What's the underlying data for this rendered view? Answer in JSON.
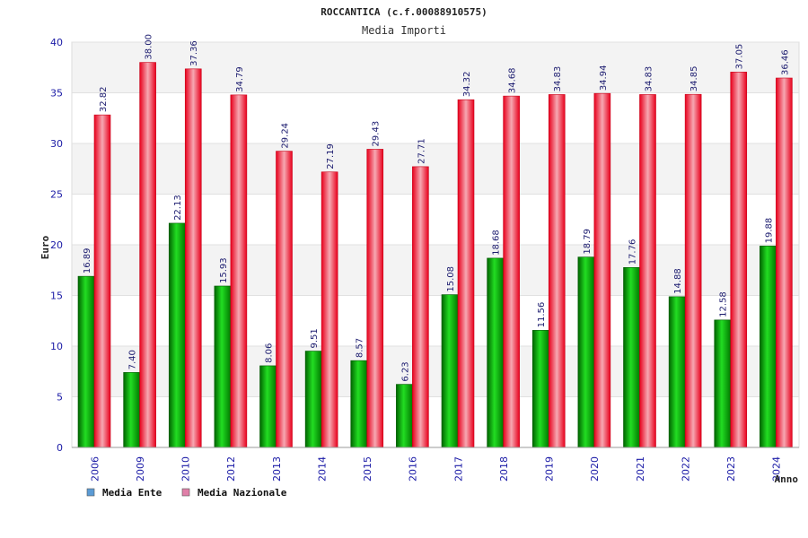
{
  "chart_data": {
    "type": "bar",
    "title": "ROCCANTICA (c.f.00088910575)",
    "subtitle": "Media Importi",
    "xlabel": "Anno",
    "ylabel": "Euro",
    "ylim": [
      0,
      40
    ],
    "yticks": [
      0,
      5,
      10,
      15,
      20,
      25,
      30,
      35,
      40
    ],
    "categories": [
      "2006",
      "2009",
      "2010",
      "2012",
      "2013",
      "2014",
      "2015",
      "2016",
      "2017",
      "2018",
      "2019",
      "2020",
      "2021",
      "2022",
      "2023",
      "2024"
    ],
    "series": [
      {
        "name": "Media Ente",
        "legend_color": "#5b9bd5",
        "bar_color": "#00b400",
        "values": [
          16.89,
          7.4,
          22.13,
          15.93,
          8.06,
          9.51,
          8.57,
          6.23,
          15.08,
          18.68,
          11.56,
          18.79,
          17.76,
          14.88,
          12.58,
          19.88
        ],
        "labels": [
          "16.89",
          "7.40",
          "22.13",
          "15.93",
          "8.06",
          "9.51",
          "8.57",
          "6.23",
          "15.08",
          "18.68",
          "11.56",
          "18.79",
          "17.76",
          "14.88",
          "12.58",
          "19.88"
        ]
      },
      {
        "name": "Media Nazionale",
        "legend_color": "#e07fa8",
        "bar_color": "#e8001c",
        "values": [
          32.82,
          38.0,
          37.36,
          34.79,
          29.24,
          27.19,
          29.43,
          27.71,
          34.32,
          34.68,
          34.83,
          34.94,
          34.83,
          34.85,
          37.05,
          36.46
        ],
        "labels": [
          "32.82",
          "38.00",
          "37.36",
          "34.79",
          "29.24",
          "27.19",
          "29.43",
          "27.71",
          "34.32",
          "34.68",
          "34.83",
          "34.94",
          "34.83",
          "34.85",
          "37.05",
          "36.46"
        ]
      }
    ],
    "grid": true,
    "legend": "bottom-left"
  },
  "colors": {
    "band_light": "#f3f3f3",
    "band_white": "#ffffff",
    "tick_text": "#1a1aa6"
  }
}
